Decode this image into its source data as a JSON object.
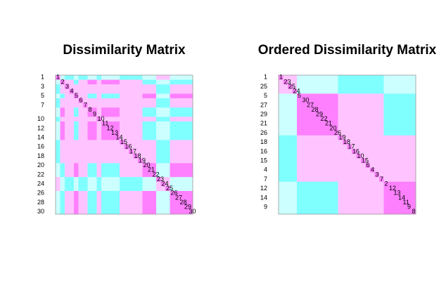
{
  "chart_data": [
    {
      "type": "heatmap",
      "title": "Dissimilarity Matrix",
      "categories": [
        "1",
        "2",
        "3",
        "4",
        "5",
        "6",
        "7",
        "8",
        "9",
        "10",
        "11",
        "12",
        "13",
        "14",
        "15",
        "16",
        "17",
        "18",
        "19",
        "20",
        "21",
        "22",
        "23",
        "24",
        "25",
        "26",
        "27",
        "28",
        "29",
        "30"
      ],
      "y_labels": [
        "1",
        null,
        "3",
        null,
        "5",
        null,
        "7",
        null,
        null,
        "10",
        null,
        "12",
        null,
        "14",
        null,
        "16",
        null,
        "18",
        null,
        "20",
        null,
        "22",
        null,
        "24",
        null,
        "26",
        null,
        "28",
        null,
        "30"
      ],
      "palette": [
        "#ff80ff",
        "#ffc4ff",
        "#ccffff",
        "#80ffff"
      ],
      "matrix": [
        [
          0,
          2,
          3,
          3,
          2,
          3,
          3,
          2,
          2,
          3,
          2,
          2,
          2,
          2,
          3,
          3,
          3,
          3,
          3,
          2,
          2,
          2,
          1,
          1,
          1,
          2,
          2,
          2,
          2,
          2
        ],
        [
          2,
          0,
          1,
          1,
          3,
          1,
          1,
          0,
          0,
          1,
          0,
          0,
          0,
          0,
          1,
          1,
          1,
          1,
          1,
          3,
          3,
          3,
          2,
          2,
          2,
          3,
          3,
          3,
          3,
          3
        ],
        [
          3,
          1,
          0,
          1,
          1,
          1,
          1,
          1,
          1,
          1,
          1,
          1,
          1,
          1,
          1,
          1,
          1,
          1,
          1,
          1,
          1,
          1,
          3,
          3,
          3,
          1,
          1,
          1,
          1,
          1
        ],
        [
          3,
          1,
          1,
          0,
          1,
          1,
          1,
          1,
          1,
          1,
          1,
          1,
          1,
          1,
          1,
          1,
          1,
          1,
          1,
          1,
          1,
          1,
          3,
          3,
          3,
          1,
          1,
          1,
          1,
          1
        ],
        [
          2,
          3,
          1,
          1,
          0,
          1,
          1,
          3,
          3,
          1,
          3,
          3,
          3,
          3,
          1,
          1,
          1,
          1,
          1,
          0,
          0,
          0,
          2,
          2,
          2,
          0,
          0,
          0,
          0,
          0
        ],
        [
          3,
          1,
          1,
          1,
          1,
          0,
          1,
          1,
          1,
          1,
          1,
          1,
          1,
          1,
          1,
          1,
          1,
          1,
          1,
          1,
          1,
          1,
          3,
          3,
          3,
          1,
          1,
          1,
          1,
          1
        ],
        [
          3,
          1,
          1,
          1,
          1,
          1,
          0,
          1,
          1,
          1,
          1,
          1,
          1,
          1,
          1,
          1,
          1,
          1,
          1,
          1,
          1,
          1,
          3,
          3,
          3,
          1,
          1,
          1,
          1,
          1
        ],
        [
          2,
          0,
          1,
          1,
          3,
          1,
          1,
          0,
          0,
          1,
          0,
          0,
          0,
          0,
          1,
          1,
          1,
          1,
          1,
          3,
          3,
          3,
          2,
          2,
          2,
          3,
          3,
          3,
          3,
          3
        ],
        [
          2,
          0,
          1,
          1,
          3,
          1,
          1,
          0,
          0,
          1,
          0,
          0,
          0,
          0,
          1,
          1,
          1,
          1,
          1,
          3,
          3,
          3,
          2,
          2,
          2,
          3,
          3,
          3,
          3,
          3
        ],
        [
          3,
          1,
          1,
          1,
          1,
          1,
          1,
          1,
          1,
          0,
          1,
          1,
          1,
          1,
          1,
          1,
          1,
          1,
          1,
          1,
          1,
          1,
          3,
          3,
          3,
          1,
          1,
          1,
          1,
          1
        ],
        [
          2,
          0,
          1,
          1,
          3,
          1,
          1,
          0,
          0,
          1,
          0,
          0,
          0,
          0,
          1,
          1,
          1,
          1,
          1,
          3,
          3,
          3,
          2,
          2,
          2,
          3,
          3,
          3,
          3,
          3
        ],
        [
          2,
          0,
          1,
          1,
          3,
          1,
          1,
          0,
          0,
          1,
          0,
          0,
          0,
          0,
          1,
          1,
          1,
          1,
          1,
          3,
          3,
          3,
          2,
          2,
          2,
          3,
          3,
          3,
          3,
          3
        ],
        [
          2,
          0,
          1,
          1,
          3,
          1,
          1,
          0,
          0,
          1,
          0,
          0,
          0,
          0,
          1,
          1,
          1,
          1,
          1,
          3,
          3,
          3,
          2,
          2,
          2,
          3,
          3,
          3,
          3,
          3
        ],
        [
          2,
          0,
          1,
          1,
          3,
          1,
          1,
          0,
          0,
          1,
          0,
          0,
          0,
          0,
          1,
          1,
          1,
          1,
          1,
          3,
          3,
          3,
          2,
          2,
          2,
          3,
          3,
          3,
          3,
          3
        ],
        [
          3,
          1,
          1,
          1,
          1,
          1,
          1,
          1,
          1,
          1,
          1,
          1,
          1,
          1,
          0,
          1,
          1,
          1,
          1,
          1,
          1,
          1,
          3,
          3,
          3,
          1,
          1,
          1,
          1,
          1
        ],
        [
          3,
          1,
          1,
          1,
          1,
          1,
          1,
          1,
          1,
          1,
          1,
          1,
          1,
          1,
          1,
          0,
          1,
          1,
          1,
          1,
          1,
          1,
          3,
          3,
          3,
          1,
          1,
          1,
          1,
          1
        ],
        [
          3,
          1,
          1,
          1,
          1,
          1,
          1,
          1,
          1,
          1,
          1,
          1,
          1,
          1,
          1,
          1,
          0,
          1,
          1,
          1,
          1,
          1,
          3,
          3,
          3,
          1,
          1,
          1,
          1,
          1
        ],
        [
          3,
          1,
          1,
          1,
          1,
          1,
          1,
          1,
          1,
          1,
          1,
          1,
          1,
          1,
          1,
          1,
          1,
          0,
          1,
          1,
          1,
          1,
          3,
          3,
          3,
          1,
          1,
          1,
          1,
          1
        ],
        [
          3,
          1,
          1,
          1,
          1,
          1,
          1,
          1,
          1,
          1,
          1,
          1,
          1,
          1,
          1,
          1,
          1,
          1,
          0,
          1,
          1,
          1,
          3,
          3,
          3,
          1,
          1,
          1,
          1,
          1
        ],
        [
          2,
          3,
          1,
          1,
          0,
          1,
          1,
          3,
          3,
          1,
          3,
          3,
          3,
          3,
          1,
          1,
          1,
          1,
          1,
          0,
          0,
          0,
          2,
          2,
          2,
          0,
          0,
          0,
          0,
          0
        ],
        [
          2,
          3,
          1,
          1,
          0,
          1,
          1,
          3,
          3,
          1,
          3,
          3,
          3,
          3,
          1,
          1,
          1,
          1,
          1,
          0,
          0,
          0,
          2,
          2,
          2,
          0,
          0,
          0,
          0,
          0
        ],
        [
          2,
          3,
          1,
          1,
          0,
          1,
          1,
          3,
          3,
          1,
          3,
          3,
          3,
          3,
          1,
          1,
          1,
          1,
          1,
          0,
          0,
          0,
          2,
          2,
          2,
          0,
          0,
          0,
          0,
          0
        ],
        [
          1,
          2,
          3,
          3,
          2,
          3,
          3,
          2,
          2,
          3,
          2,
          2,
          2,
          2,
          3,
          3,
          3,
          3,
          3,
          2,
          2,
          2,
          0,
          1,
          1,
          2,
          2,
          2,
          2,
          2
        ],
        [
          1,
          2,
          3,
          3,
          2,
          3,
          3,
          2,
          2,
          3,
          2,
          2,
          2,
          2,
          3,
          3,
          3,
          3,
          3,
          2,
          2,
          2,
          1,
          0,
          1,
          2,
          2,
          2,
          2,
          2
        ],
        [
          1,
          2,
          3,
          3,
          2,
          3,
          3,
          2,
          2,
          3,
          2,
          2,
          2,
          2,
          3,
          3,
          3,
          3,
          3,
          2,
          2,
          2,
          1,
          1,
          0,
          2,
          2,
          2,
          2,
          2
        ],
        [
          2,
          3,
          1,
          1,
          0,
          1,
          1,
          3,
          3,
          1,
          3,
          3,
          3,
          3,
          1,
          1,
          1,
          1,
          1,
          0,
          0,
          0,
          2,
          2,
          2,
          0,
          0,
          0,
          0,
          0
        ],
        [
          2,
          3,
          1,
          1,
          0,
          1,
          1,
          3,
          3,
          1,
          3,
          3,
          3,
          3,
          1,
          1,
          1,
          1,
          1,
          0,
          0,
          0,
          2,
          2,
          2,
          0,
          0,
          0,
          0,
          0
        ],
        [
          2,
          3,
          1,
          1,
          0,
          1,
          1,
          3,
          3,
          1,
          3,
          3,
          3,
          3,
          1,
          1,
          1,
          1,
          1,
          0,
          0,
          0,
          2,
          2,
          2,
          0,
          0,
          0,
          0,
          0
        ],
        [
          2,
          3,
          1,
          1,
          0,
          1,
          1,
          3,
          3,
          1,
          3,
          3,
          3,
          3,
          1,
          1,
          1,
          1,
          1,
          0,
          0,
          0,
          2,
          2,
          2,
          0,
          0,
          0,
          0,
          0
        ],
        [
          2,
          3,
          1,
          1,
          0,
          1,
          1,
          3,
          3,
          1,
          3,
          3,
          3,
          3,
          1,
          1,
          1,
          1,
          1,
          0,
          0,
          0,
          2,
          2,
          2,
          0,
          0,
          0,
          0,
          0
        ]
      ]
    },
    {
      "type": "ordered-heatmap",
      "title": "Ordered Dissimilarity Matrix",
      "order": [
        1,
        23,
        25,
        24,
        5,
        30,
        27,
        28,
        29,
        22,
        21,
        20,
        26,
        19,
        18,
        17,
        16,
        10,
        15,
        6,
        4,
        3,
        7,
        2,
        12,
        13,
        14,
        11,
        9,
        8
      ],
      "y_labels": [
        "1",
        null,
        "25",
        null,
        "5",
        null,
        "27",
        null,
        "29",
        null,
        "21",
        null,
        "26",
        null,
        "18",
        null,
        "16",
        null,
        "15",
        null,
        "4",
        null,
        "7",
        null,
        "12",
        null,
        "14",
        null,
        "9",
        null
      ]
    }
  ]
}
